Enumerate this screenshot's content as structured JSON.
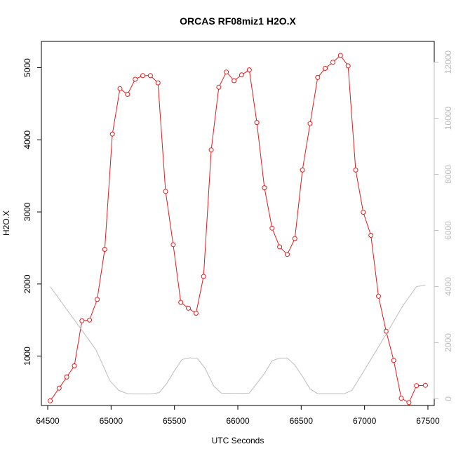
{
  "chart_data": {
    "type": "line",
    "title": "ORCAS RF08miz1 H2O.X",
    "xlabel": "UTC Seconds",
    "ylabel": "H2O.X",
    "xlim": [
      64450,
      67550
    ],
    "ylim": [
      315,
      5365
    ],
    "y2lim": [
      -240,
      12740
    ],
    "x_ticks": [
      64500,
      65000,
      65500,
      66000,
      66500,
      67000,
      67500
    ],
    "y_ticks": [
      1000,
      2000,
      3000,
      4000,
      5000
    ],
    "y2_ticks": [
      0,
      2000,
      4000,
      6000,
      8000,
      10000,
      12000
    ],
    "grid": false,
    "legend": "none",
    "series": [
      {
        "color": "#e41a1c",
        "axis": "left",
        "markers": "open-circle",
        "points": [
          [
            64520,
            380
          ],
          [
            64590,
            555
          ],
          [
            64650,
            710
          ],
          [
            64710,
            865
          ],
          [
            64770,
            1490
          ],
          [
            64830,
            1500
          ],
          [
            64890,
            1785
          ],
          [
            64950,
            2480
          ],
          [
            65010,
            4080
          ],
          [
            65070,
            4710
          ],
          [
            65130,
            4630
          ],
          [
            65190,
            4840
          ],
          [
            65250,
            4890
          ],
          [
            65310,
            4890
          ],
          [
            65370,
            4790
          ],
          [
            65430,
            3285
          ],
          [
            65490,
            2545
          ],
          [
            65550,
            1745
          ],
          [
            65610,
            1665
          ],
          [
            65670,
            1595
          ],
          [
            65730,
            2105
          ],
          [
            65790,
            3860
          ],
          [
            65850,
            4730
          ],
          [
            65910,
            4940
          ],
          [
            65970,
            4820
          ],
          [
            66030,
            4900
          ],
          [
            66090,
            4970
          ],
          [
            66150,
            4240
          ],
          [
            66210,
            3335
          ],
          [
            66270,
            2775
          ],
          [
            66330,
            2515
          ],
          [
            66390,
            2410
          ],
          [
            66450,
            2630
          ],
          [
            66510,
            3580
          ],
          [
            66570,
            4225
          ],
          [
            66630,
            4865
          ],
          [
            66690,
            4990
          ],
          [
            66750,
            5075
          ],
          [
            66810,
            5170
          ],
          [
            66870,
            5025
          ],
          [
            66930,
            3580
          ],
          [
            66990,
            2995
          ],
          [
            67050,
            2675
          ],
          [
            67110,
            1830
          ],
          [
            67170,
            1345
          ],
          [
            67230,
            940
          ],
          [
            67290,
            415
          ],
          [
            67350,
            355
          ],
          [
            67410,
            590
          ],
          [
            67480,
            595
          ]
        ]
      },
      {
        "color": "#bdbdbd",
        "axis": "right",
        "markers": "none",
        "points": [
          [
            64520,
            4000
          ],
          [
            64640,
            3250
          ],
          [
            64760,
            2500
          ],
          [
            64880,
            1750
          ],
          [
            64990,
            650
          ],
          [
            65060,
            300
          ],
          [
            65130,
            180
          ],
          [
            65200,
            170
          ],
          [
            65310,
            170
          ],
          [
            65380,
            220
          ],
          [
            65440,
            550
          ],
          [
            65500,
            1000
          ],
          [
            65560,
            1400
          ],
          [
            65620,
            1460
          ],
          [
            65680,
            1440
          ],
          [
            65740,
            1100
          ],
          [
            65810,
            450
          ],
          [
            65870,
            200
          ],
          [
            66000,
            190
          ],
          [
            66090,
            200
          ],
          [
            66150,
            550
          ],
          [
            66210,
            900
          ],
          [
            66270,
            1350
          ],
          [
            66330,
            1450
          ],
          [
            66390,
            1450
          ],
          [
            66450,
            1200
          ],
          [
            66510,
            800
          ],
          [
            66570,
            350
          ],
          [
            66630,
            180
          ],
          [
            66840,
            180
          ],
          [
            66900,
            300
          ],
          [
            66990,
            950
          ],
          [
            67090,
            1700
          ],
          [
            67190,
            2450
          ],
          [
            67300,
            3300
          ],
          [
            67410,
            4000
          ],
          [
            67480,
            4050
          ]
        ]
      }
    ]
  }
}
